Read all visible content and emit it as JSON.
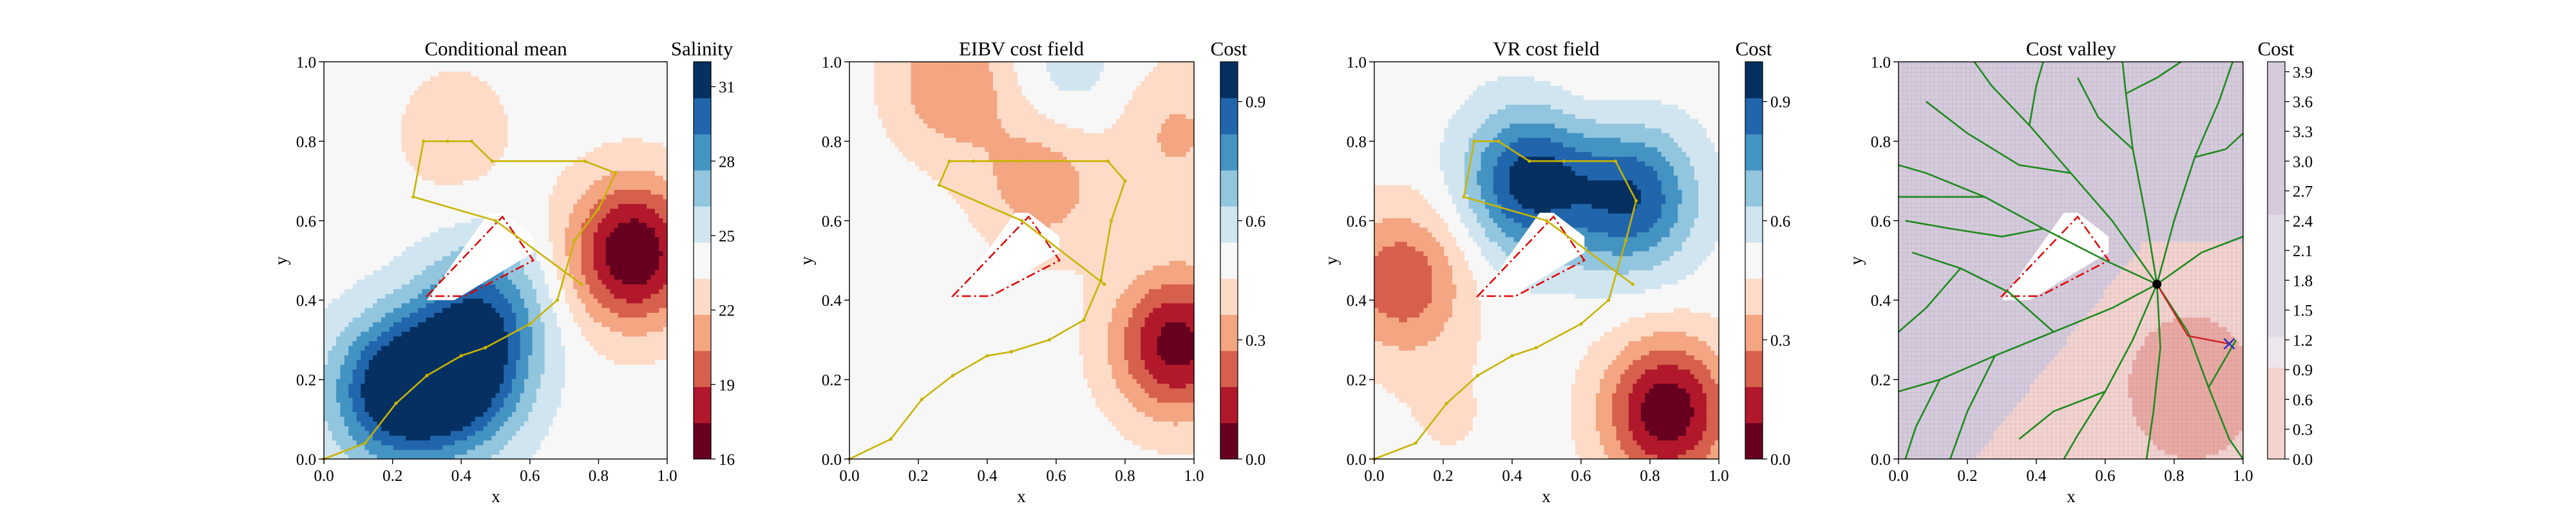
{
  "chart_data": [
    {
      "type": "heatmap",
      "title": "Conditional mean",
      "xlabel": "x",
      "ylabel": "y",
      "xlim": [
        0,
        1
      ],
      "ylim": [
        0,
        1
      ],
      "x_ticks": [
        "0.0",
        "0.2",
        "0.4",
        "0.6",
        "0.8",
        "1.0"
      ],
      "y_ticks": [
        "0.0",
        "0.2",
        "0.4",
        "0.6",
        "0.8",
        "1.0"
      ],
      "colorbar": {
        "label": "Salinity",
        "range": [
          16,
          32
        ],
        "ticks": [
          "16",
          "19",
          "22",
          "25",
          "28",
          "31"
        ],
        "tick_values": [
          16,
          19,
          22,
          25,
          28,
          31
        ]
      },
      "colormap": [
        "#67001f",
        "#b2182b",
        "#d6604d",
        "#f4a582",
        "#fddbc7",
        "#f7f7f7",
        "#d1e5f0",
        "#92c5de",
        "#4393c3",
        "#2166ac",
        "#053061"
      ],
      "features": [
        {
          "kind": "peak",
          "x": 0.9,
          "y": 0.52,
          "value": 16
        },
        {
          "kind": "peak",
          "x": 0.38,
          "y": 0.82,
          "value": 22.5
        },
        {
          "kind": "peak",
          "x": 0.2,
          "y": 0.17,
          "value": 31.5
        },
        {
          "kind": "peak",
          "x": 0.4,
          "y": 0.2,
          "value": 31
        },
        {
          "kind": "peak",
          "x": 0.47,
          "y": 0.38,
          "value": 28.5
        }
      ],
      "path": [
        [
          0.0,
          0.0
        ],
        [
          0.12,
          0.04
        ],
        [
          0.21,
          0.14
        ],
        [
          0.3,
          0.21
        ],
        [
          0.4,
          0.26
        ],
        [
          0.47,
          0.28
        ],
        [
          0.6,
          0.34
        ],
        [
          0.68,
          0.4
        ],
        [
          0.73,
          0.55
        ],
        [
          0.8,
          0.63
        ],
        [
          0.85,
          0.72
        ],
        [
          0.76,
          0.75
        ],
        [
          0.49,
          0.75
        ],
        [
          0.43,
          0.8
        ],
        [
          0.36,
          0.8
        ],
        [
          0.29,
          0.8
        ],
        [
          0.26,
          0.66
        ],
        [
          0.5,
          0.6
        ],
        [
          0.75,
          0.44
        ]
      ]
    },
    {
      "type": "heatmap",
      "title": "EIBV cost field",
      "xlabel": "x",
      "ylabel": "y",
      "xlim": [
        0,
        1
      ],
      "ylim": [
        0,
        1
      ],
      "x_ticks": [
        "0.0",
        "0.2",
        "0.4",
        "0.6",
        "0.8",
        "1.0"
      ],
      "y_ticks": [
        "0.0",
        "0.2",
        "0.4",
        "0.6",
        "0.8",
        "1.0"
      ],
      "colorbar": {
        "label": "Cost",
        "range": [
          0,
          1
        ],
        "ticks": [
          "0.0",
          "0.3",
          "0.6",
          "0.9"
        ],
        "tick_values": [
          0,
          0.3,
          0.6,
          0.9
        ]
      },
      "colormap": [
        "#67001f",
        "#b2182b",
        "#d6604d",
        "#f4a582",
        "#fddbc7",
        "#f7f7f7",
        "#d1e5f0",
        "#92c5de",
        "#4393c3",
        "#2166ac",
        "#053061"
      ],
      "features": [
        {
          "kind": "peak",
          "x": 0.95,
          "y": 0.29,
          "value": 0.05
        },
        {
          "kind": "peak",
          "x": 0.3,
          "y": 0.95,
          "value": 0.28
        },
        {
          "kind": "peak",
          "x": 0.56,
          "y": 0.7,
          "value": 0.3
        },
        {
          "kind": "peak",
          "x": 0.06,
          "y": 0.72,
          "value": 0.5
        },
        {
          "kind": "peak",
          "x": 0.95,
          "y": 0.82,
          "value": 0.35
        },
        {
          "kind": "peak",
          "x": 0.63,
          "y": 0.96,
          "value": 0.6
        }
      ],
      "path": [
        [
          0.0,
          0.0
        ],
        [
          0.12,
          0.05
        ],
        [
          0.21,
          0.15
        ],
        [
          0.3,
          0.21
        ],
        [
          0.4,
          0.26
        ],
        [
          0.47,
          0.27
        ],
        [
          0.58,
          0.3
        ],
        [
          0.68,
          0.35
        ],
        [
          0.73,
          0.45
        ],
        [
          0.76,
          0.6
        ],
        [
          0.8,
          0.7
        ],
        [
          0.75,
          0.75
        ],
        [
          0.49,
          0.75
        ],
        [
          0.43,
          0.75
        ],
        [
          0.36,
          0.75
        ],
        [
          0.29,
          0.75
        ],
        [
          0.26,
          0.69
        ],
        [
          0.5,
          0.6
        ],
        [
          0.74,
          0.44
        ]
      ]
    },
    {
      "type": "heatmap",
      "title": "VR cost field",
      "xlabel": "x",
      "ylabel": "y",
      "xlim": [
        0,
        1
      ],
      "ylim": [
        0,
        1
      ],
      "x_ticks": [
        "0.0",
        "0.2",
        "0.4",
        "0.6",
        "0.8",
        "1.0"
      ],
      "y_ticks": [
        "0.0",
        "0.2",
        "0.4",
        "0.6",
        "0.8",
        "1.0"
      ],
      "colorbar": {
        "label": "Cost",
        "range": [
          0,
          1
        ],
        "ticks": [
          "0.0",
          "0.3",
          "0.6",
          "0.9"
        ],
        "tick_values": [
          0,
          0.3,
          0.6,
          0.9
        ]
      },
      "colormap": [
        "#67001f",
        "#b2182b",
        "#d6604d",
        "#f4a582",
        "#fddbc7",
        "#f7f7f7",
        "#d1e5f0",
        "#92c5de",
        "#4393c3",
        "#2166ac",
        "#053061"
      ],
      "features": [
        {
          "kind": "peak",
          "x": 0.85,
          "y": 0.12,
          "value": 0.02
        },
        {
          "kind": "peak",
          "x": 0.08,
          "y": 0.45,
          "value": 0.2
        },
        {
          "kind": "peak",
          "x": 0.22,
          "y": 0.1,
          "value": 0.45
        },
        {
          "kind": "peak",
          "x": 0.65,
          "y": 0.95,
          "value": 0.45
        },
        {
          "kind": "peak",
          "x": 0.45,
          "y": 0.7,
          "value": 0.95
        },
        {
          "kind": "peak",
          "x": 0.75,
          "y": 0.66,
          "value": 0.9
        }
      ],
      "path": [
        [
          0.0,
          0.0
        ],
        [
          0.12,
          0.04
        ],
        [
          0.21,
          0.14
        ],
        [
          0.3,
          0.21
        ],
        [
          0.4,
          0.26
        ],
        [
          0.47,
          0.28
        ],
        [
          0.6,
          0.34
        ],
        [
          0.68,
          0.4
        ],
        [
          0.73,
          0.55
        ],
        [
          0.76,
          0.65
        ],
        [
          0.7,
          0.75
        ],
        [
          0.55,
          0.75
        ],
        [
          0.45,
          0.75
        ],
        [
          0.36,
          0.8
        ],
        [
          0.29,
          0.8
        ],
        [
          0.26,
          0.66
        ],
        [
          0.5,
          0.6
        ],
        [
          0.75,
          0.44
        ]
      ]
    },
    {
      "type": "heatmap",
      "title": "Cost valley",
      "xlabel": "x",
      "ylabel": "y",
      "xlim": [
        0,
        1
      ],
      "ylim": [
        0,
        1
      ],
      "x_ticks": [
        "0.0",
        "0.2",
        "0.4",
        "0.6",
        "0.8",
        "1.0"
      ],
      "y_ticks": [
        "0.0",
        "0.2",
        "0.4",
        "0.6",
        "0.8",
        "1.0"
      ],
      "colorbar": {
        "label": "Cost",
        "range": [
          0,
          4
        ],
        "ticks": [
          "0.0",
          "0.3",
          "0.6",
          "0.9",
          "1.2",
          "1.5",
          "1.8",
          "2.1",
          "2.4",
          "2.7",
          "3.0",
          "3.3",
          "3.6",
          "3.9"
        ],
        "tick_values": [
          0,
          0.3,
          0.6,
          0.9,
          1.2,
          1.5,
          1.8,
          2.1,
          2.4,
          2.7,
          3.0,
          3.3,
          3.6,
          3.9
        ]
      },
      "colormap": [
        "#c9b6cf",
        "#d6cbdc",
        "#e1dbe6",
        "#ede6ec",
        "#f4d3cf",
        "#f0c1bb",
        "#eaa9a3"
      ],
      "features": [
        {
          "kind": "low-region",
          "x": 0.85,
          "y": 0.2,
          "value": 0.9
        }
      ],
      "tree_root": [
        0.75,
        0.44
      ],
      "tree_branches": [
        [
          [
            0.75,
            0.44
          ],
          [
            0.6,
            0.5
          ],
          [
            0.42,
            0.58
          ],
          [
            0.25,
            0.66
          ],
          [
            0.08,
            0.72
          ],
          [
            0.0,
            0.74
          ]
        ],
        [
          [
            0.75,
            0.44
          ],
          [
            0.62,
            0.6
          ],
          [
            0.5,
            0.72
          ],
          [
            0.38,
            0.84
          ],
          [
            0.27,
            0.94
          ],
          [
            0.22,
            1.0
          ]
        ],
        [
          [
            0.75,
            0.44
          ],
          [
            0.72,
            0.6
          ],
          [
            0.68,
            0.78
          ],
          [
            0.66,
            0.92
          ],
          [
            0.65,
            1.0
          ]
        ],
        [
          [
            0.75,
            0.44
          ],
          [
            0.8,
            0.6
          ],
          [
            0.86,
            0.76
          ],
          [
            0.93,
            0.9
          ],
          [
            0.97,
            1.0
          ]
        ],
        [
          [
            0.75,
            0.44
          ],
          [
            0.88,
            0.52
          ],
          [
            1.0,
            0.56
          ]
        ],
        [
          [
            0.75,
            0.44
          ],
          [
            0.62,
            0.38
          ],
          [
            0.45,
            0.32
          ],
          [
            0.28,
            0.26
          ],
          [
            0.12,
            0.2
          ],
          [
            0.0,
            0.17
          ]
        ],
        [
          [
            0.75,
            0.44
          ],
          [
            0.68,
            0.3
          ],
          [
            0.6,
            0.17
          ],
          [
            0.52,
            0.06
          ],
          [
            0.48,
            0.0
          ]
        ],
        [
          [
            0.75,
            0.44
          ],
          [
            0.76,
            0.28
          ],
          [
            0.74,
            0.12
          ],
          [
            0.72,
            0.0
          ]
        ],
        [
          [
            0.75,
            0.44
          ],
          [
            0.84,
            0.32
          ],
          [
            0.9,
            0.18
          ],
          [
            0.96,
            0.05
          ],
          [
            1.0,
            0.0
          ]
        ],
        [
          [
            0.45,
            0.32
          ],
          [
            0.32,
            0.42
          ],
          [
            0.18,
            0.48
          ],
          [
            0.04,
            0.52
          ]
        ],
        [
          [
            0.42,
            0.58
          ],
          [
            0.3,
            0.56
          ],
          [
            0.15,
            0.58
          ],
          [
            0.02,
            0.6
          ]
        ],
        [
          [
            0.5,
            0.72
          ],
          [
            0.35,
            0.74
          ],
          [
            0.2,
            0.82
          ],
          [
            0.08,
            0.9
          ]
        ],
        [
          [
            0.38,
            0.84
          ],
          [
            0.4,
            0.94
          ],
          [
            0.42,
            1.0
          ]
        ],
        [
          [
            0.68,
            0.78
          ],
          [
            0.58,
            0.86
          ],
          [
            0.52,
            0.96
          ]
        ],
        [
          [
            0.86,
            0.76
          ],
          [
            0.95,
            0.78
          ],
          [
            1.0,
            0.82
          ]
        ],
        [
          [
            0.28,
            0.26
          ],
          [
            0.2,
            0.12
          ],
          [
            0.15,
            0.0
          ]
        ],
        [
          [
            0.6,
            0.17
          ],
          [
            0.45,
            0.12
          ],
          [
            0.35,
            0.05
          ]
        ],
        [
          [
            0.9,
            0.18
          ],
          [
            0.98,
            0.3
          ]
        ],
        [
          [
            0.25,
            0.66
          ],
          [
            0.12,
            0.66
          ],
          [
            0.0,
            0.66
          ]
        ],
        [
          [
            0.12,
            0.2
          ],
          [
            0.05,
            0.08
          ],
          [
            0.02,
            0.0
          ]
        ],
        [
          [
            0.18,
            0.48
          ],
          [
            0.08,
            0.38
          ],
          [
            0.0,
            0.32
          ]
        ],
        [
          [
            0.66,
            0.92
          ],
          [
            0.75,
            0.96
          ],
          [
            0.82,
            1.0
          ]
        ]
      ],
      "target_path": [
        [
          0.75,
          0.44
        ],
        [
          0.84,
          0.31
        ],
        [
          0.96,
          0.29
        ]
      ],
      "target_marker": [
        0.96,
        0.29
      ]
    }
  ],
  "obstacle": {
    "polygon": [
      [
        0.3,
        0.4
      ],
      [
        0.38,
        0.4
      ],
      [
        0.61,
        0.52
      ],
      [
        0.61,
        0.56
      ],
      [
        0.52,
        0.62
      ],
      [
        0.48,
        0.62
      ]
    ],
    "boundary": [
      [
        0.3,
        0.41
      ],
      [
        0.52,
        0.61
      ],
      [
        0.61,
        0.5
      ],
      [
        0.41,
        0.41
      ]
    ]
  },
  "colors": {
    "path": "#c8b400",
    "obstacle_fill": "#ffffff",
    "obstacle_outline": "#e00000",
    "tree": "#1e8a1e",
    "target_path": "#cc2222",
    "target_marker": "#3030c0"
  }
}
